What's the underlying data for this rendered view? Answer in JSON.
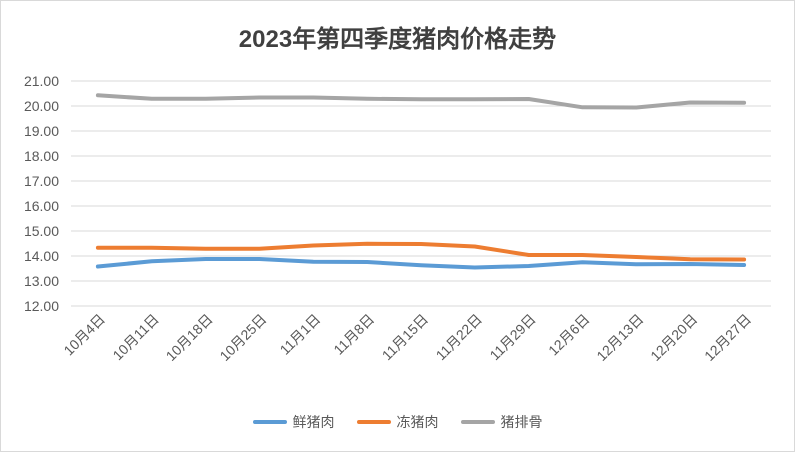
{
  "chart_data": {
    "type": "line",
    "title": "2023年第四季度猪肉价格走势",
    "xlabel": "",
    "ylabel": "",
    "categories": [
      "10月4日",
      "10月11日",
      "10月18日",
      "10月25日",
      "11月1日",
      "11月8日",
      "11月15日",
      "11月22日",
      "11月29日",
      "12月6日",
      "12月13日",
      "12月20日",
      "12月27日"
    ],
    "ylim": [
      12.0,
      21.0
    ],
    "yticks": [
      "12.00",
      "13.00",
      "14.00",
      "15.00",
      "16.00",
      "17.00",
      "18.00",
      "19.00",
      "20.00",
      "21.00"
    ],
    "grid": true,
    "legend_position": "bottom",
    "series": [
      {
        "name": "鲜猪肉",
        "color": "#5b9bd5",
        "values": [
          13.58,
          13.79,
          13.88,
          13.88,
          13.77,
          13.76,
          13.63,
          13.54,
          13.6,
          13.75,
          13.67,
          13.68,
          13.64
        ]
      },
      {
        "name": "冻猪肉",
        "color": "#ed7d31",
        "values": [
          14.33,
          14.33,
          14.29,
          14.29,
          14.42,
          14.49,
          14.48,
          14.38,
          14.04,
          14.04,
          13.96,
          13.87,
          13.86
        ]
      },
      {
        "name": "猪排骨",
        "color": "#a5a5a5",
        "values": [
          20.43,
          20.29,
          20.29,
          20.34,
          20.34,
          20.29,
          20.27,
          20.27,
          20.28,
          19.95,
          19.94,
          20.14,
          20.13
        ]
      }
    ]
  }
}
